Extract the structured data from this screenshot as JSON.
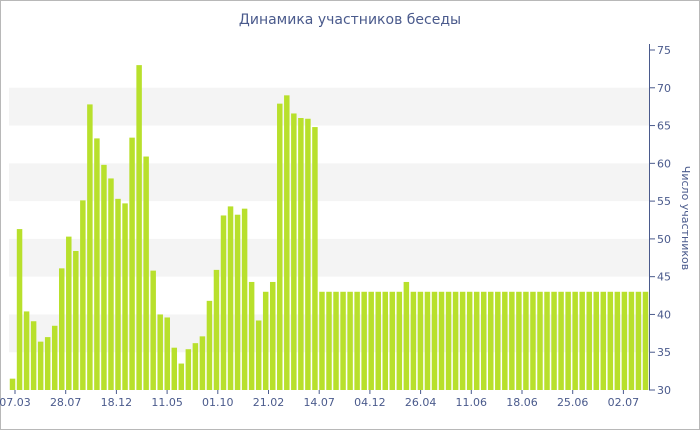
{
  "chart_data": {
    "type": "bar",
    "title": "Динамика участников беседы",
    "ylabel": "Число участников",
    "xlabel": "",
    "ylim": [
      30,
      75
    ],
    "y_ticks": [
      30,
      35,
      40,
      45,
      50,
      55,
      60,
      65,
      70,
      75
    ],
    "x_tick_labels": [
      "07.03",
      "28.07",
      "18.12",
      "11.05",
      "01.10",
      "21.02",
      "14.07",
      "04.12",
      "26.04",
      "11.06",
      "18.06",
      "25.06",
      "02.07"
    ],
    "grid": "alternating horizontal bands",
    "legend": "none",
    "bar_color": "#b8e02c",
    "values": [
      31.5,
      51.3,
      40.4,
      39.1,
      36.4,
      37.0,
      38.5,
      46.1,
      50.3,
      48.4,
      55.1,
      67.8,
      63.3,
      59.8,
      58.0,
      55.3,
      54.7,
      63.4,
      73.0,
      60.9,
      45.8,
      40.0,
      39.6,
      35.6,
      33.5,
      35.4,
      36.2,
      37.1,
      41.8,
      45.9,
      53.1,
      54.3,
      53.2,
      54.0,
      44.3,
      39.2,
      43.0,
      44.3,
      67.9,
      69.0,
      66.6,
      66.0,
      65.9,
      64.8,
      43.0,
      43.0,
      43.0,
      43.0,
      43.0,
      43.0,
      43.0,
      43.0,
      43.0,
      43.0,
      43.0,
      43.0,
      44.3,
      43.0,
      43.0,
      43.0,
      43.0,
      43.0,
      43.0,
      43.0,
      43.0,
      43.0,
      43.0,
      43.0,
      43.0,
      43.0,
      43.0,
      43.0,
      43.0,
      43.0,
      43.0,
      43.0,
      43.0,
      43.0,
      43.0,
      43.0,
      43.0,
      43.0,
      43.0,
      43.0,
      43.0,
      43.0,
      43.0,
      43.0,
      43.0,
      43.0,
      43.0
    ]
  }
}
